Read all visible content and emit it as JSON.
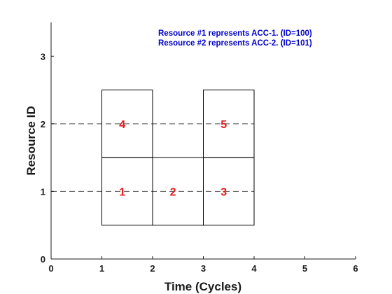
{
  "chart_data": {
    "type": "gantt",
    "xlabel": "Time (Cycles)",
    "ylabel": "Resource ID",
    "xlim": [
      0,
      6
    ],
    "ylim": [
      0,
      3.5
    ],
    "xticks": [
      0,
      1,
      2,
      3,
      4,
      5,
      6
    ],
    "yticks": [
      0,
      1,
      2,
      3
    ],
    "grid": false,
    "annotations": [
      "Resource #1 represents ACC-1. (ID=100)",
      "Resource #2 represents ACC-2. (ID=101)"
    ],
    "reference_lines": [
      1,
      2
    ],
    "tasks": [
      {
        "label": "1",
        "resource": 1,
        "start": 1,
        "end": 2
      },
      {
        "label": "2",
        "resource": 1,
        "start": 2,
        "end": 3
      },
      {
        "label": "3",
        "resource": 1,
        "start": 3,
        "end": 4
      },
      {
        "label": "4",
        "resource": 2,
        "start": 1,
        "end": 2
      },
      {
        "label": "5",
        "resource": 2,
        "start": 3,
        "end": 4
      }
    ],
    "block_height": 1,
    "colors": {
      "axis": "#1a1a1a",
      "block_edge": "#000000",
      "label": "#e31a1c",
      "annotation": "#0000cc",
      "ref_line": "#4d4d4d"
    }
  }
}
